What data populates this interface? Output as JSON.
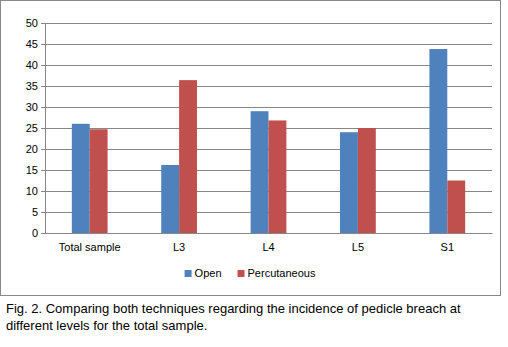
{
  "chart_data": {
    "type": "bar",
    "title": "Fig. 2. Comparing both techniques regarding the incidence of pedicle breach at different levels for the total sample.",
    "categories": [
      "Total sample",
      "L3",
      "L4",
      "L5",
      "S1"
    ],
    "series": [
      {
        "name": "Open",
        "color": "#4f81bd",
        "values": [
          26,
          16.2,
          29,
          24,
          43.8
        ]
      },
      {
        "name": "Percutaneous",
        "color": "#c0504d",
        "values": [
          24.7,
          36.4,
          26.8,
          25,
          12.5
        ]
      }
    ],
    "ylim": [
      0,
      50
    ],
    "yticks": [
      0,
      5,
      10,
      15,
      20,
      25,
      30,
      35,
      40,
      45,
      50
    ],
    "grid": true,
    "legend": "bottom"
  }
}
